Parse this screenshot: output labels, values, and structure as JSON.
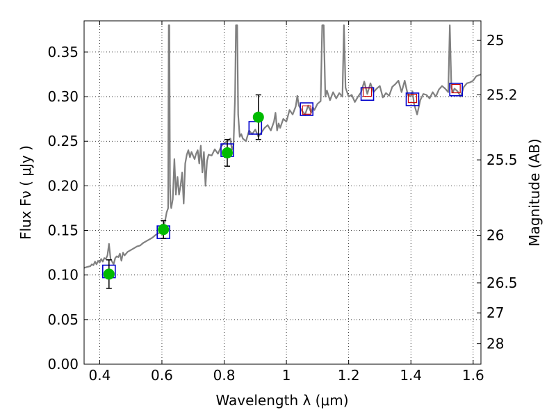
{
  "chart_data": {
    "type": "line",
    "xlabel": "Wavelength  λ (μm)",
    "ylabel": "Flux  Fν  ( μJy )",
    "y2label": "Magnitude (AB)",
    "xlim": [
      0.35,
      1.625
    ],
    "ylim": [
      0.0,
      0.385
    ],
    "grid": true,
    "x_ticks": [
      {
        "value": 0.4,
        "label": "0.4"
      },
      {
        "value": 0.6,
        "label": "0.6"
      },
      {
        "value": 0.8,
        "label": "0.8"
      },
      {
        "value": 1.0,
        "label": "1"
      },
      {
        "value": 1.2,
        "label": "1.2"
      },
      {
        "value": 1.4,
        "label": "1.4"
      },
      {
        "value": 1.6,
        "label": "1.6"
      }
    ],
    "y_ticks": [
      {
        "value": 0.0,
        "label": "0.00"
      },
      {
        "value": 0.05,
        "label": "0.05"
      },
      {
        "value": 0.1,
        "label": "0.10"
      },
      {
        "value": 0.15,
        "label": "0.15"
      },
      {
        "value": 0.2,
        "label": "0.20"
      },
      {
        "value": 0.25,
        "label": "0.25"
      },
      {
        "value": 0.3,
        "label": "0.30"
      },
      {
        "value": 0.35,
        "label": "0.35"
      }
    ],
    "y2_ticks": [
      {
        "value": 25,
        "label": "25"
      },
      {
        "value": 25.2,
        "label": "25.2"
      },
      {
        "value": 25.5,
        "label": "25.5"
      },
      {
        "value": 26,
        "label": "26"
      },
      {
        "value": 26.5,
        "label": "26.5"
      },
      {
        "value": 27,
        "label": "27"
      },
      {
        "value": 28,
        "label": "28"
      }
    ],
    "colors": {
      "template": "#808080",
      "observed": "#00bb00",
      "model_photometry": "#0000cc",
      "model_alt": "#cc0000"
    },
    "template_spectrum": {
      "x": [
        0.35,
        0.36,
        0.37,
        0.375,
        0.38,
        0.385,
        0.39,
        0.395,
        0.4,
        0.405,
        0.41,
        0.415,
        0.42,
        0.425,
        0.43,
        0.435,
        0.44,
        0.445,
        0.45,
        0.455,
        0.46,
        0.465,
        0.47,
        0.475,
        0.48,
        0.49,
        0.5,
        0.51,
        0.52,
        0.53,
        0.54,
        0.55,
        0.56,
        0.57,
        0.58,
        0.59,
        0.6,
        0.605,
        0.61,
        0.615,
        0.62,
        0.622,
        0.624,
        0.626,
        0.628,
        0.63,
        0.635,
        0.64,
        0.645,
        0.65,
        0.655,
        0.66,
        0.665,
        0.67,
        0.675,
        0.68,
        0.685,
        0.69,
        0.695,
        0.7,
        0.705,
        0.71,
        0.715,
        0.72,
        0.725,
        0.73,
        0.735,
        0.74,
        0.745,
        0.75,
        0.76,
        0.77,
        0.78,
        0.79,
        0.8,
        0.81,
        0.82,
        0.825,
        0.83,
        0.835,
        0.838,
        0.84,
        0.842,
        0.845,
        0.85,
        0.855,
        0.86,
        0.87,
        0.88,
        0.89,
        0.9,
        0.91,
        0.92,
        0.93,
        0.94,
        0.95,
        0.96,
        0.965,
        0.97,
        0.975,
        0.98,
        0.99,
        1.0,
        1.01,
        1.02,
        1.03,
        1.035,
        1.04,
        1.05,
        1.06,
        1.07,
        1.08,
        1.085,
        1.09,
        1.1,
        1.11,
        1.115,
        1.12,
        1.125,
        1.13,
        1.14,
        1.15,
        1.16,
        1.17,
        1.18,
        1.185,
        1.19,
        1.2,
        1.21,
        1.22,
        1.23,
        1.24,
        1.25,
        1.26,
        1.27,
        1.28,
        1.29,
        1.3,
        1.31,
        1.32,
        1.33,
        1.34,
        1.35,
        1.36,
        1.37,
        1.38,
        1.39,
        1.4,
        1.405,
        1.41,
        1.42,
        1.43,
        1.44,
        1.45,
        1.46,
        1.47,
        1.48,
        1.49,
        1.5,
        1.51,
        1.52,
        1.525,
        1.53,
        1.535,
        1.54,
        1.55,
        1.56,
        1.57,
        1.58,
        1.59,
        1.6,
        1.61,
        1.625
      ],
      "y": [
        0.108,
        0.109,
        0.11,
        0.112,
        0.111,
        0.115,
        0.112,
        0.116,
        0.114,
        0.118,
        0.115,
        0.119,
        0.118,
        0.122,
        0.135,
        0.118,
        0.115,
        0.112,
        0.119,
        0.121,
        0.12,
        0.124,
        0.116,
        0.125,
        0.122,
        0.126,
        0.128,
        0.13,
        0.132,
        0.133,
        0.136,
        0.138,
        0.14,
        0.142,
        0.145,
        0.147,
        0.15,
        0.155,
        0.16,
        0.17,
        0.175,
        0.38,
        0.38,
        0.2,
        0.18,
        0.175,
        0.185,
        0.23,
        0.19,
        0.21,
        0.19,
        0.2,
        0.215,
        0.18,
        0.225,
        0.235,
        0.24,
        0.232,
        0.238,
        0.234,
        0.23,
        0.236,
        0.24,
        0.225,
        0.245,
        0.215,
        0.238,
        0.2,
        0.228,
        0.235,
        0.234,
        0.241,
        0.236,
        0.244,
        0.248,
        0.25,
        0.253,
        0.24,
        0.246,
        0.3,
        0.38,
        0.38,
        0.38,
        0.28,
        0.255,
        0.258,
        0.253,
        0.25,
        0.262,
        0.258,
        0.263,
        0.255,
        0.26,
        0.265,
        0.268,
        0.262,
        0.272,
        0.282,
        0.262,
        0.27,
        0.265,
        0.275,
        0.272,
        0.285,
        0.28,
        0.289,
        0.301,
        0.29,
        0.284,
        0.28,
        0.29,
        0.282,
        0.288,
        0.285,
        0.292,
        0.295,
        0.38,
        0.38,
        0.3,
        0.307,
        0.296,
        0.305,
        0.298,
        0.304,
        0.3,
        0.38,
        0.31,
        0.3,
        0.302,
        0.294,
        0.3,
        0.305,
        0.317,
        0.303,
        0.315,
        0.305,
        0.309,
        0.312,
        0.299,
        0.304,
        0.301,
        0.311,
        0.314,
        0.318,
        0.305,
        0.318,
        0.302,
        0.3,
        0.306,
        0.292,
        0.28,
        0.296,
        0.303,
        0.302,
        0.298,
        0.305,
        0.3,
        0.308,
        0.312,
        0.309,
        0.305,
        0.38,
        0.31,
        0.305,
        0.309,
        0.306,
        0.3,
        0.311,
        0.315,
        0.316,
        0.318,
        0.323,
        0.325
      ]
    },
    "model_photometry": {
      "x": [
        0.43,
        0.605,
        0.81,
        0.9,
        1.065,
        1.26,
        1.405,
        1.545
      ],
      "y": [
        0.104,
        0.148,
        0.24,
        0.265,
        0.286,
        0.303,
        0.297,
        0.308
      ]
    },
    "model_alt": {
      "x": [
        1.065,
        1.26,
        1.405,
        1.545
      ],
      "y": [
        0.285,
        0.305,
        0.298,
        0.309
      ]
    },
    "observed": {
      "x": [
        0.43,
        0.605,
        0.81,
        0.91
      ],
      "y": [
        0.101,
        0.151,
        0.237,
        0.277
      ],
      "err": [
        0.016,
        0.01,
        0.015,
        0.025
      ]
    }
  }
}
